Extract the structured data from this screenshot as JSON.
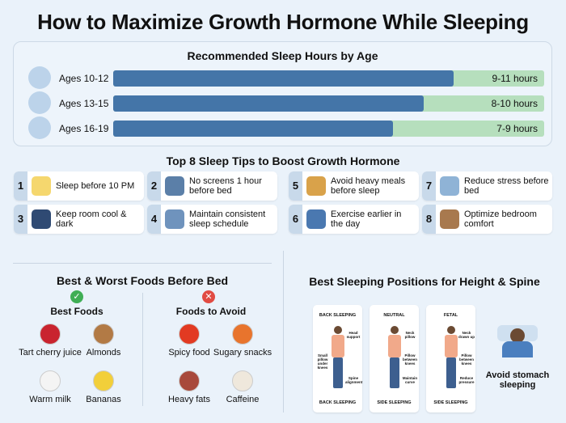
{
  "title": "How to Maximize Growth Hormone While Sleeping",
  "sleep_hours": {
    "title": "Recommended Sleep Hours by Age",
    "rows": [
      {
        "age": "Ages 10-12",
        "hours": "9-11 hours",
        "fill_fraction": 0.79
      },
      {
        "age": "Ages 13-15",
        "hours": "8-10 hours",
        "fill_fraction": 0.72
      },
      {
        "age": "Ages 16-19",
        "hours": "7-9 hours",
        "fill_fraction": 0.65
      }
    ]
  },
  "tips": {
    "title": "Top 8 Sleep Tips to Boost Growth Hormone",
    "items": [
      {
        "num": "1",
        "text": "Sleep before 10 PM",
        "icon": "moon-icon",
        "color": "#f5d76e"
      },
      {
        "num": "2",
        "text": "No screens 1 hour before bed",
        "icon": "phone-icon",
        "color": "#5b7fa8"
      },
      {
        "num": "5",
        "text": "Avoid heavy meals before sleep",
        "icon": "burger-icon",
        "color": "#d9a24a"
      },
      {
        "num": "7",
        "text": "Reduce stress before bed",
        "icon": "stressed-person-icon",
        "color": "#8fb3d6"
      },
      {
        "num": "3",
        "text": "Keep room cool & dark",
        "icon": "dark-room-icon",
        "color": "#2f4a73"
      },
      {
        "num": "4",
        "text": "Maintain consistent sleep schedule",
        "icon": "clock-icon",
        "color": "#6f93bd"
      },
      {
        "num": "6",
        "text": "Exercise earlier in the day",
        "icon": "exercise-icon",
        "color": "#4a78b0"
      },
      {
        "num": "8",
        "text": "Optimize bedroom comfort",
        "icon": "bed-icon",
        "color": "#a8794e"
      }
    ]
  },
  "foods": {
    "title": "Best & Worst Foods Before Bed",
    "best": {
      "label": "Best Foods",
      "items": [
        {
          "name": "Tart cherry juice",
          "color": "#c9242f"
        },
        {
          "name": "Almonds",
          "color": "#b27a45"
        },
        {
          "name": "Warm milk",
          "color": "#f4f4f4"
        },
        {
          "name": "Bananas",
          "color": "#f2cf3a"
        }
      ]
    },
    "avoid": {
      "label": "Foods to Avoid",
      "items": [
        {
          "name": "Spicy food",
          "color": "#e23a22"
        },
        {
          "name": "Sugary snacks",
          "color": "#e8742d"
        },
        {
          "name": "Heavy fats",
          "color": "#a8493b"
        },
        {
          "name": "Caffeine",
          "color": "#efe8dc"
        }
      ]
    }
  },
  "positions": {
    "title": "Best Sleeping Positions for Height & Spine",
    "cards": [
      {
        "top": "BACK SLEEPING",
        "bottom": "BACK SLEEPING",
        "notes": [
          "Head support",
          "Small pillow under knees",
          "Spine alignment"
        ]
      },
      {
        "top": "NEUTRAL",
        "bottom": "SIDE SLEEPING",
        "notes": [
          "Neck pillow",
          "Pillow between knees",
          "Maintain curve"
        ]
      },
      {
        "top": "FETAL",
        "bottom": "SIDE SLEEPING",
        "notes": [
          "Neck drawn up",
          "Pillow between knees",
          "Reduce pressure"
        ]
      }
    ],
    "avoid": "Avoid stomach sleeping"
  }
}
